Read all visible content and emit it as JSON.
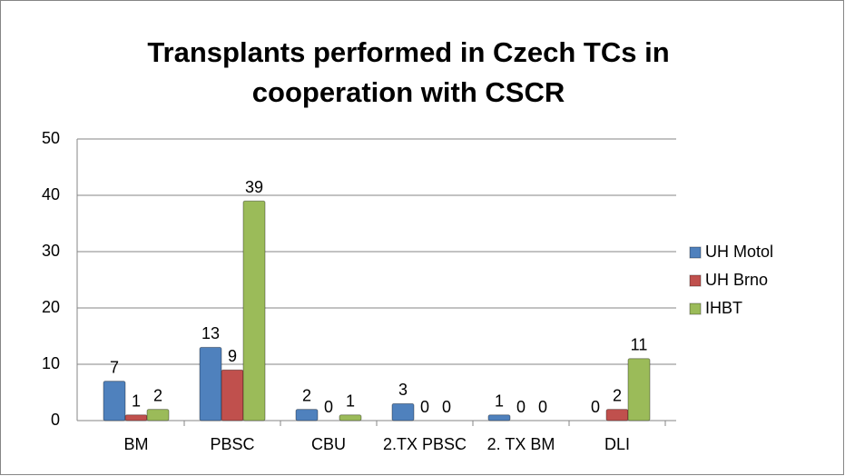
{
  "chart_data": {
    "type": "bar",
    "title": "Transplants performed in Czech TCs in cooperation with CSCR",
    "categories": [
      "BM",
      "PBSC",
      "CBU",
      "2.TX PBSC",
      "2. TX BM",
      "DLI"
    ],
    "series": [
      {
        "name": "UH Motol",
        "color": "#4f81bd",
        "values": [
          7,
          13,
          2,
          3,
          1,
          0
        ]
      },
      {
        "name": "UH Brno",
        "color": "#c0504d",
        "values": [
          1,
          9,
          0,
          0,
          0,
          2
        ]
      },
      {
        "name": "IHBT",
        "color": "#9bbb59",
        "values": [
          2,
          39,
          1,
          0,
          0,
          11
        ]
      }
    ],
    "ylim": [
      0,
      50
    ],
    "yticks": [
      0,
      10,
      20,
      30,
      40,
      50
    ],
    "grid": true,
    "legend": "right"
  }
}
